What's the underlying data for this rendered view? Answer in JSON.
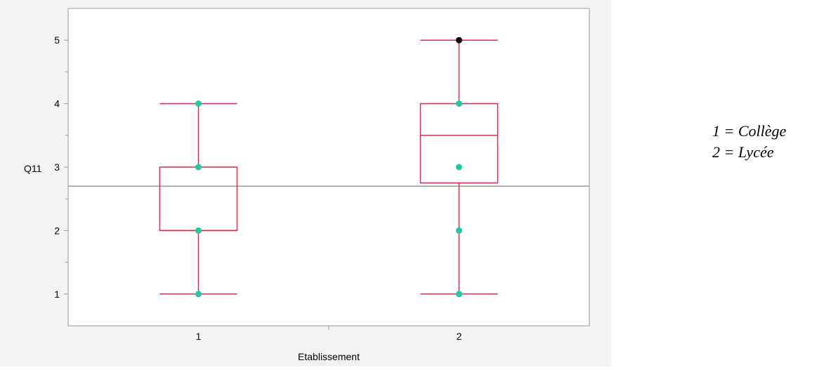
{
  "chart_data": {
    "type": "box",
    "title": "",
    "xlabel": "Etablissement",
    "ylabel": "Q11",
    "ylim": [
      0.5,
      5.5
    ],
    "yticks": [
      1,
      2,
      3,
      4,
      5
    ],
    "categories": [
      "1",
      "2"
    ],
    "boxes": [
      {
        "category": "1",
        "min": 1,
        "q1": 2,
        "median": 2,
        "q3": 3,
        "max": 4,
        "points": [
          1,
          2,
          3,
          4
        ],
        "outliers": []
      },
      {
        "category": "2",
        "min": 1,
        "q1": 2.75,
        "median": 3.5,
        "q3": 4,
        "max": 5,
        "points": [
          1,
          2,
          3,
          4
        ],
        "outliers": [
          5
        ]
      }
    ],
    "reference_line": 2.7,
    "grid": false,
    "colors": {
      "box": "#e0284f",
      "point": "#22c9a0",
      "outlier": "#000000",
      "reference": "#9a9a9a",
      "plot_bg": "#ffffff",
      "panel_bg": "#f3f3f3"
    }
  },
  "legend": {
    "lines": [
      "1 = Collège",
      "2 = Lycée"
    ]
  }
}
